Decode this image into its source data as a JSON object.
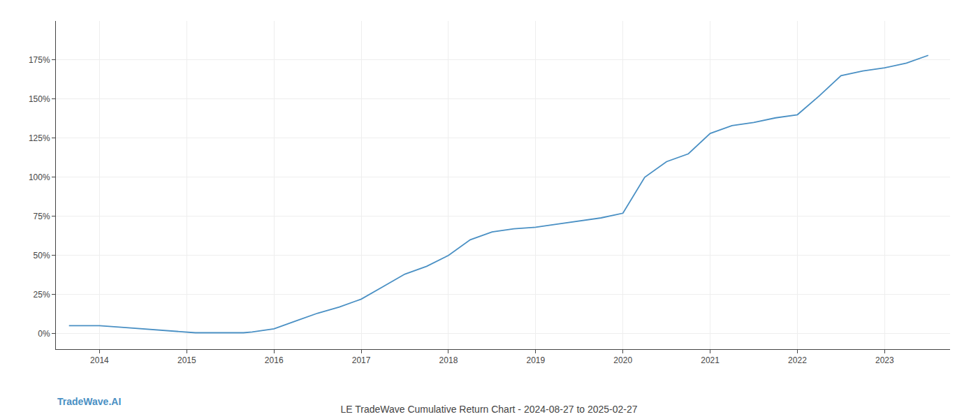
{
  "chart_data": {
    "type": "line",
    "title": "LE TradeWave Cumulative Return Chart - 2024-08-27 to 2025-02-27",
    "annotations": [
      "TradeWave.AI"
    ],
    "color": "#4a90c4",
    "x": [
      2013.65,
      2014.0,
      2014.25,
      2014.5,
      2014.75,
      2015.0,
      2015.1,
      2015.25,
      2015.5,
      2015.65,
      2015.75,
      2016.0,
      2016.25,
      2016.5,
      2016.75,
      2017.0,
      2017.25,
      2017.5,
      2017.75,
      2018.0,
      2018.25,
      2018.5,
      2018.75,
      2019.0,
      2019.25,
      2019.5,
      2019.75,
      2020.0,
      2020.25,
      2020.5,
      2020.75,
      2021.0,
      2021.25,
      2021.5,
      2021.75,
      2022.0,
      2022.25,
      2022.5,
      2022.75,
      2023.0,
      2023.25,
      2023.5
    ],
    "values": [
      5,
      5,
      4,
      3,
      2,
      1,
      0.5,
      0.5,
      0.5,
      0.5,
      1,
      3,
      8,
      13,
      17,
      22,
      30,
      38,
      43,
      50,
      60,
      65,
      67,
      68,
      70,
      72,
      74,
      77,
      100,
      110,
      115,
      128,
      133,
      135,
      138,
      140,
      152,
      165,
      168,
      170,
      173,
      178
    ],
    "xlim": [
      2013.5,
      2023.75
    ],
    "xticks": [
      2014,
      2015,
      2016,
      2017,
      2018,
      2019,
      2020,
      2021,
      2022,
      2023
    ],
    "ylim": [
      -10,
      200
    ],
    "yticks": [
      {
        "value": 0,
        "label": "0%"
      },
      {
        "value": 25,
        "label": "25%"
      },
      {
        "value": 50,
        "label": "50%"
      },
      {
        "value": 75,
        "label": "75%"
      },
      {
        "value": 100,
        "label": "100%"
      },
      {
        "value": 125,
        "label": "125%"
      },
      {
        "value": 150,
        "label": "150%"
      },
      {
        "value": 175,
        "label": "175%"
      }
    ],
    "grid": true
  }
}
